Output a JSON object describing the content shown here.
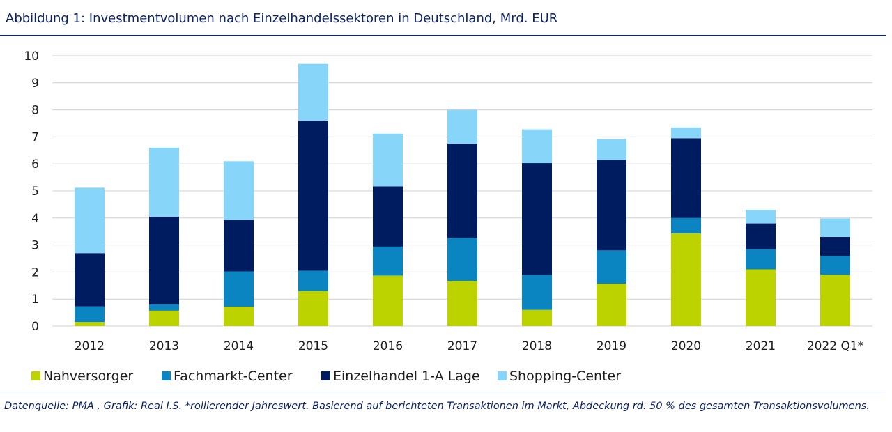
{
  "title": "Abbildung 1: Investmentvolumen nach Einzelhandelssektoren in Deutschland, Mrd. EUR",
  "footnote": "Datenquelle: PMA , Grafik: Real I.S. *rollierender Jahreswert. Basierend auf berichteten Transaktionen im Markt, Abdeckung rd. 50 % des gesamten Transaktionsvolumens.",
  "chart_data": {
    "type": "bar",
    "stacked": true,
    "categories": [
      "2012",
      "2013",
      "2014",
      "2015",
      "2016",
      "2017",
      "2018",
      "2019",
      "2020",
      "2021",
      "2022 Q1*"
    ],
    "series": [
      {
        "name": "Nahversorger",
        "color": "#bdd300",
        "values": [
          0.15,
          0.57,
          0.72,
          1.3,
          1.87,
          1.67,
          0.6,
          1.57,
          3.43,
          2.1,
          1.9
        ]
      },
      {
        "name": "Fachmarkt-Center",
        "color": "#0a85c2",
        "values": [
          0.58,
          0.23,
          1.3,
          0.75,
          1.07,
          1.6,
          1.3,
          1.23,
          0.57,
          0.75,
          0.7
        ]
      },
      {
        "name": "Einzelhandel 1-A Lage",
        "color": "#001c60",
        "values": [
          1.97,
          3.25,
          1.9,
          5.55,
          2.23,
          3.48,
          4.13,
          3.35,
          2.95,
          0.95,
          0.7
        ]
      },
      {
        "name": "Shopping-Center",
        "color": "#87d5f8",
        "values": [
          2.42,
          2.55,
          2.18,
          2.1,
          1.95,
          1.25,
          1.25,
          0.77,
          0.4,
          0.5,
          0.68
        ]
      }
    ],
    "ylim": [
      0,
      10
    ],
    "yticks": [
      "0",
      "1",
      "2",
      "3",
      "4",
      "5",
      "6",
      "7",
      "8",
      "9",
      "10"
    ],
    "grid": true,
    "legend": "bottom-left"
  }
}
